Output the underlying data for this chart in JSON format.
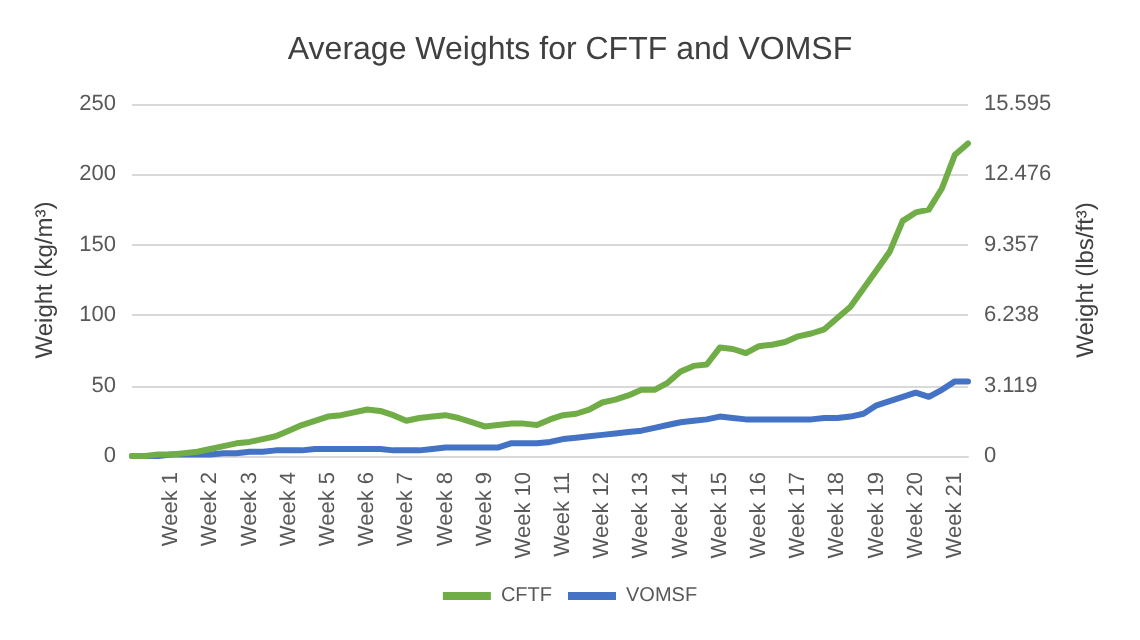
{
  "chart_data": {
    "type": "line",
    "title": "Average Weights for CFTF and VOMSF",
    "ylabel": "Weight (kg/m³)",
    "y2label": "Weight (lbs/ft³)",
    "categories": [
      null,
      null,
      null,
      "Week 1",
      null,
      null,
      "Week 2",
      null,
      null,
      "Week 3",
      null,
      null,
      "Week 4",
      null,
      null,
      "Week 5",
      null,
      null,
      "Week 6",
      null,
      null,
      "Week 7",
      null,
      null,
      "Week 8",
      null,
      null,
      "Week 9",
      null,
      null,
      "Week 10",
      null,
      null,
      "Week 11",
      null,
      null,
      "Week 12",
      null,
      null,
      "Week 13",
      null,
      null,
      "Week 14",
      null,
      null,
      "Week 15",
      null,
      null,
      "Week 16",
      null,
      null,
      "Week 17",
      null,
      null,
      "Week 18",
      null,
      null,
      "Week 19",
      null,
      null,
      "Week 20",
      null,
      null,
      "Week 21",
      null
    ],
    "series": [
      {
        "name": "CFTF",
        "color": "#70ad47",
        "values": [
          0,
          0,
          1,
          1,
          2,
          3,
          5,
          7,
          9,
          10,
          12,
          14,
          18,
          22,
          25,
          28,
          29,
          31,
          33,
          32,
          29,
          25,
          27,
          28,
          29,
          27,
          24,
          21,
          22,
          23,
          23,
          22,
          26,
          29,
          30,
          33,
          38,
          40,
          43,
          47,
          47,
          52,
          60,
          64,
          65,
          77,
          76,
          73,
          78,
          79,
          81,
          85,
          87,
          90,
          98,
          106,
          119,
          132,
          145,
          167,
          173,
          175,
          190,
          214,
          222
        ]
      },
      {
        "name": "VOMSF",
        "color": "#4472c4",
        "values": [
          0,
          0,
          0,
          1,
          1,
          1,
          1,
          2,
          2,
          3,
          3,
          4,
          4,
          4,
          5,
          5,
          5,
          5,
          5,
          5,
          4,
          4,
          4,
          5,
          6,
          6,
          6,
          6,
          6,
          9,
          9,
          9,
          10,
          12,
          13,
          14,
          15,
          16,
          17,
          18,
          20,
          22,
          24,
          25,
          26,
          28,
          27,
          26,
          26,
          26,
          26,
          26,
          26,
          27,
          27,
          28,
          30,
          36,
          39,
          42,
          45,
          42,
          47,
          53,
          53
        ]
      }
    ],
    "ylim": [
      0,
      250
    ],
    "yticks": [
      0,
      50,
      100,
      150,
      200,
      250
    ],
    "y2lim": [
      0,
      15.595
    ],
    "y2ticks": [
      0,
      3.119,
      6.238,
      9.357,
      12.476,
      15.595
    ],
    "grid": "y",
    "legend": "bottom",
    "marker": "none",
    "line_style": "solid"
  }
}
